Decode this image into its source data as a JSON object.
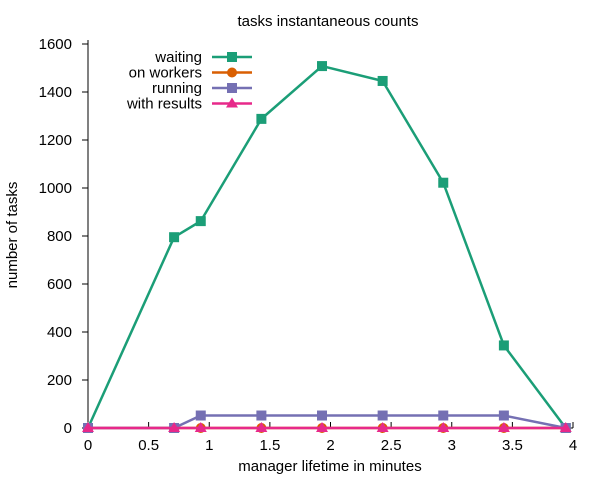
{
  "chart_data": {
    "type": "line",
    "title": "tasks instantaneous counts",
    "xlabel": "manager lifetime in minutes",
    "ylabel": "number of tasks",
    "xlim": [
      0,
      4
    ],
    "ylim": [
      0,
      1600
    ],
    "xticks": [
      0,
      0.5,
      1,
      1.5,
      2,
      2.5,
      3,
      3.5,
      4
    ],
    "xtick_labels": [
      "0",
      "0.5",
      "1",
      "1.5",
      "2",
      "2.5",
      "3",
      "3.5",
      "4"
    ],
    "yticks": [
      0,
      200,
      400,
      600,
      800,
      1000,
      1200,
      1400,
      1600
    ],
    "ytick_labels": [
      "0",
      "200",
      "400",
      "600",
      "800",
      "1000",
      "1200",
      "1400",
      "1600"
    ],
    "grid": false,
    "legend_position": "top-left",
    "series": [
      {
        "name": "waiting",
        "color": "#1b9e77",
        "marker": "square",
        "x": [
          0,
          0.71,
          0.93,
          1.43,
          1.93,
          2.43,
          2.93,
          3.43,
          3.94
        ],
        "y": [
          0,
          795,
          862,
          1288,
          1508,
          1446,
          1022,
          344,
          0
        ]
      },
      {
        "name": "on workers",
        "color": "#d95f02",
        "marker": "circle",
        "x": [
          0,
          0.71,
          0.93,
          1.43,
          1.93,
          2.43,
          2.93,
          3.43,
          3.94
        ],
        "y": [
          0,
          0,
          0,
          0,
          0,
          0,
          0,
          0,
          0
        ]
      },
      {
        "name": "running",
        "color": "#7570b3",
        "marker": "square",
        "x": [
          0,
          0.71,
          0.93,
          1.43,
          1.93,
          2.43,
          2.93,
          3.43,
          3.94
        ],
        "y": [
          0,
          0,
          52,
          52,
          52,
          52,
          52,
          52,
          0
        ]
      },
      {
        "name": "with results",
        "color": "#e7298a",
        "marker": "triangle",
        "x": [
          0,
          0.71,
          0.93,
          1.43,
          1.93,
          2.43,
          2.93,
          3.43,
          3.94
        ],
        "y": [
          0,
          0,
          0,
          0,
          0,
          0,
          0,
          0,
          0
        ]
      }
    ]
  }
}
